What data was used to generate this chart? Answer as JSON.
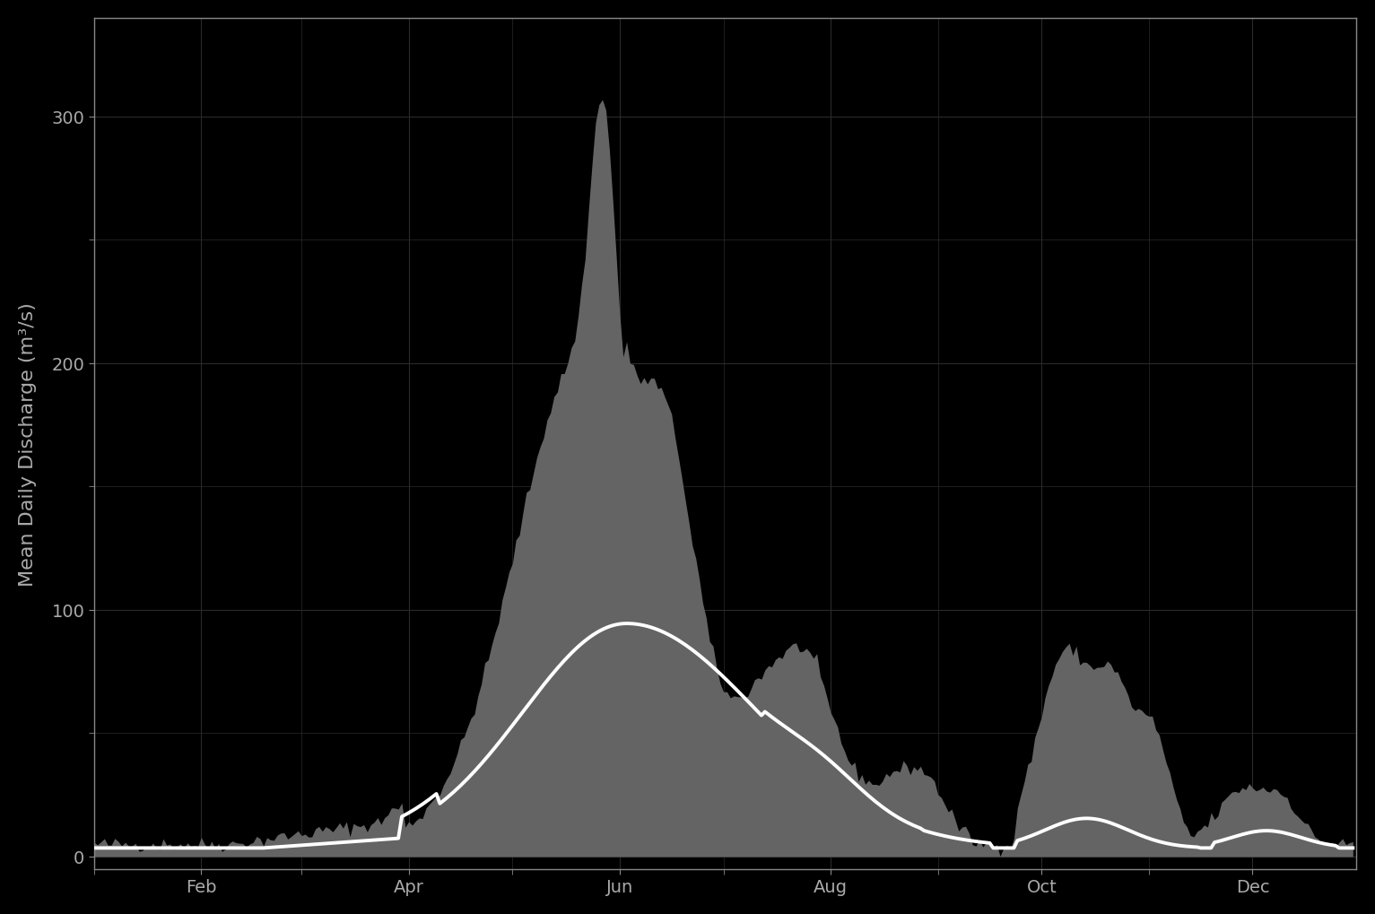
{
  "background_color": "#000000",
  "axes_background_color": "#000000",
  "grid_color": "#2a2a2a",
  "fill_color": "#646464",
  "line_color": "#ffffff",
  "ylabel": "Mean Daily Discharge (m³/s)",
  "ylim": [
    -5,
    340
  ],
  "yticks": [
    0,
    100,
    200,
    300
  ],
  "tick_label_color": "#aaaaaa",
  "spine_color": "#888888",
  "line_width": 2.8,
  "ylabel_fontsize": 16,
  "tick_fontsize": 14
}
